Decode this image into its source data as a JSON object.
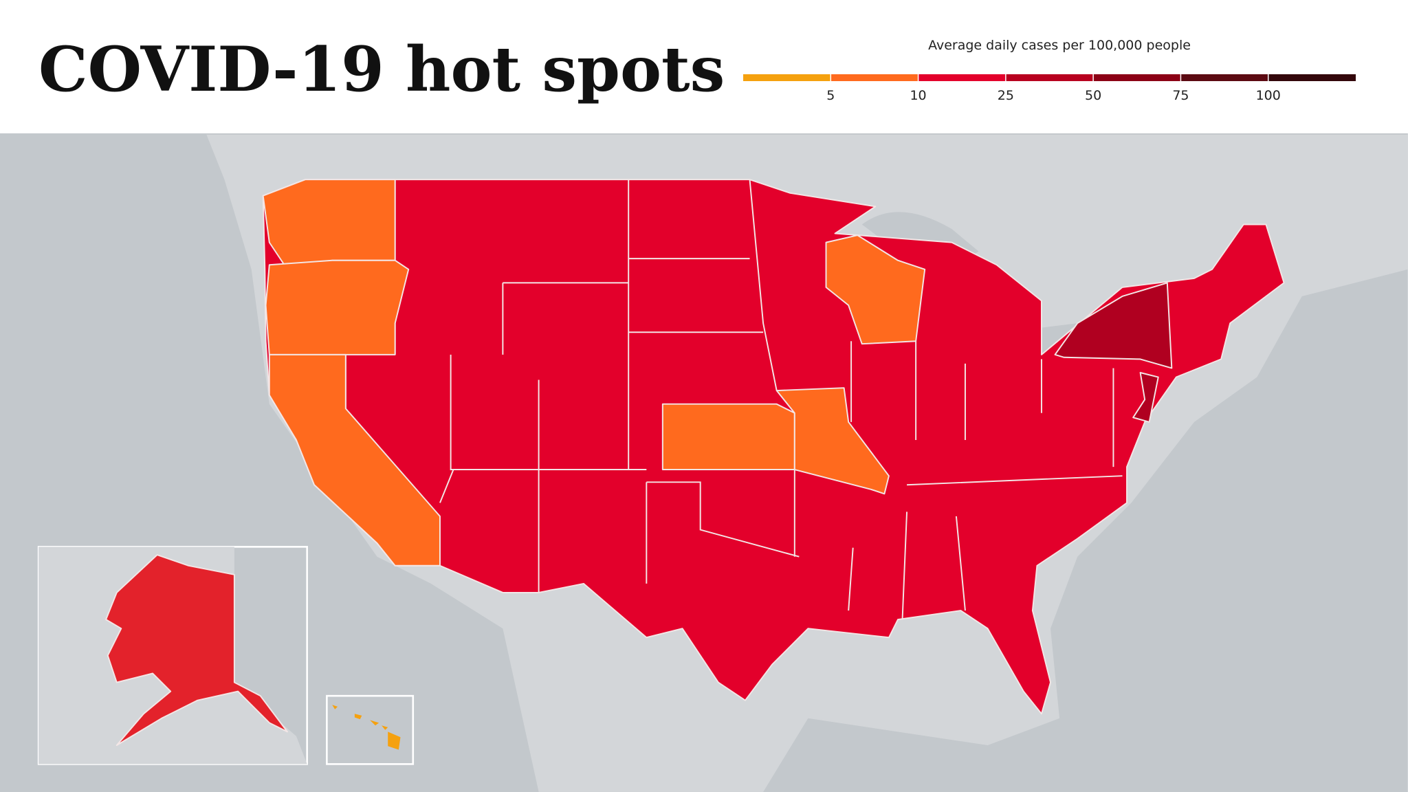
{
  "header": {
    "title": "COVID-19 hot spots"
  },
  "legend": {
    "title": "Average daily cases per 100,000 people",
    "ticks": [
      5,
      10,
      25,
      50,
      75,
      100
    ],
    "colors": [
      "#f5a10f",
      "#ff6a1e",
      "#e3002b",
      "#b8001f",
      "#8c0015",
      "#5c0a12",
      "#33070b"
    ]
  }
}
